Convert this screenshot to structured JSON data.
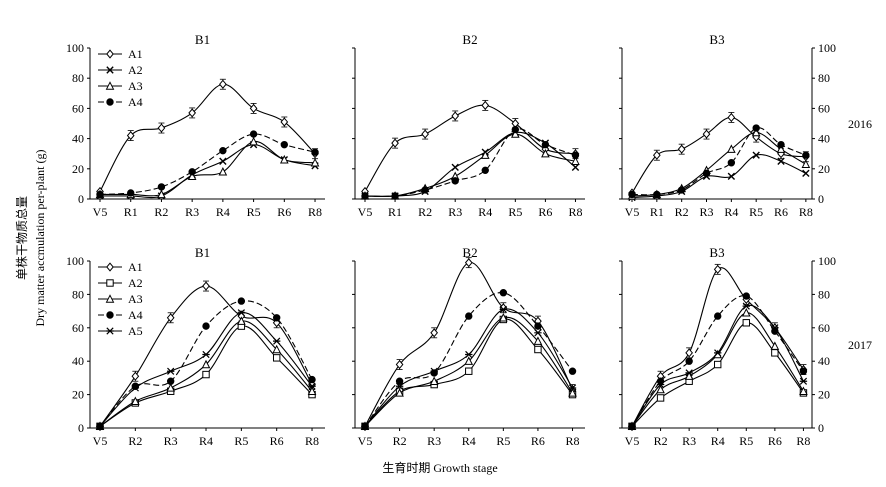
{
  "chart_data": [
    {
      "type": "line",
      "panel": "2016-B1",
      "title": "B1",
      "categories": [
        "V5",
        "R1",
        "R2",
        "R3",
        "R4",
        "R5",
        "R6",
        "R8"
      ],
      "ylim": [
        0,
        100
      ],
      "yticks": [
        0,
        20,
        40,
        60,
        80,
        100
      ],
      "legend": "top-left",
      "series": [
        {
          "name": "A1",
          "values": [
            5,
            42,
            47,
            57,
            76,
            60,
            51,
            30
          ]
        },
        {
          "name": "A2",
          "values": [
            2,
            2,
            2,
            16,
            25,
            36,
            26,
            22
          ]
        },
        {
          "name": "A3",
          "values": [
            3,
            3,
            3,
            15,
            18,
            38,
            26,
            24
          ]
        },
        {
          "name": "A4",
          "values": [
            3,
            4,
            8,
            18,
            32,
            43,
            36,
            31
          ]
        }
      ]
    },
    {
      "type": "line",
      "panel": "2016-B2",
      "title": "B2",
      "categories": [
        "V5",
        "R1",
        "R2",
        "R3",
        "R4",
        "R5",
        "R6",
        "R8"
      ],
      "ylim": [
        0,
        100
      ],
      "series": [
        {
          "name": "A1",
          "values": [
            5,
            37,
            43,
            55,
            62,
            50,
            33,
            30
          ]
        },
        {
          "name": "A2",
          "values": [
            2,
            2,
            5,
            21,
            31,
            44,
            37,
            21
          ]
        },
        {
          "name": "A3",
          "values": [
            2,
            2,
            7,
            15,
            29,
            43,
            30,
            25
          ]
        },
        {
          "name": "A4",
          "values": [
            2,
            2,
            6,
            12,
            19,
            46,
            36,
            29
          ]
        }
      ]
    },
    {
      "type": "line",
      "panel": "2016-B3",
      "title": "B3",
      "categories": [
        "V5",
        "R1",
        "R2",
        "R3",
        "R4",
        "R5",
        "R6",
        "R8"
      ],
      "ylim": [
        0,
        100
      ],
      "yticks_right": [
        0,
        20,
        40,
        60,
        80,
        100
      ],
      "series": [
        {
          "name": "A1",
          "values": [
            4,
            29,
            33,
            43,
            54,
            41,
            30,
            28
          ]
        },
        {
          "name": "A2",
          "values": [
            1,
            2,
            5,
            15,
            15,
            29,
            25,
            17
          ]
        },
        {
          "name": "A3",
          "values": [
            2,
            3,
            7,
            19,
            33,
            44,
            33,
            23
          ]
        },
        {
          "name": "A4",
          "values": [
            3,
            3,
            6,
            17,
            24,
            47,
            36,
            29
          ]
        }
      ]
    },
    {
      "type": "line",
      "panel": "2017-B1",
      "title": "B1",
      "categories": [
        "V5",
        "R2",
        "R3",
        "R4",
        "R5",
        "R6",
        "R8"
      ],
      "ylim": [
        0,
        100
      ],
      "yticks": [
        0,
        20,
        40,
        60,
        80,
        100
      ],
      "legend": "top-left",
      "series": [
        {
          "name": "A1",
          "values": [
            1,
            31,
            66,
            85,
            67,
            63,
            26
          ]
        },
        {
          "name": "A2",
          "values": [
            1,
            15,
            22,
            32,
            61,
            42,
            20
          ]
        },
        {
          "name": "A3",
          "values": [
            1,
            16,
            24,
            38,
            64,
            47,
            22
          ]
        },
        {
          "name": "A4",
          "values": [
            1,
            25,
            28,
            61,
            76,
            66,
            29
          ]
        },
        {
          "name": "A5",
          "values": [
            1,
            24,
            34,
            44,
            69,
            52,
            25
          ]
        }
      ]
    },
    {
      "type": "line",
      "panel": "2017-B2",
      "title": "B2",
      "categories": [
        "V5",
        "R2",
        "R3",
        "R4",
        "R5",
        "R6",
        "R8"
      ],
      "ylim": [
        0,
        100
      ],
      "series": [
        {
          "name": "A1",
          "values": [
            1,
            38,
            57,
            99,
            72,
            64,
            23
          ]
        },
        {
          "name": "A2",
          "values": [
            1,
            22,
            26,
            34,
            65,
            47,
            20
          ]
        },
        {
          "name": "A3",
          "values": [
            1,
            21,
            28,
            40,
            66,
            52,
            21
          ]
        },
        {
          "name": "A4",
          "values": [
            1,
            28,
            33,
            67,
            81,
            61,
            34
          ]
        },
        {
          "name": "A5",
          "values": [
            1,
            25,
            34,
            44,
            71,
            57,
            24
          ]
        }
      ]
    },
    {
      "type": "line",
      "panel": "2017-B3",
      "title": "B3",
      "categories": [
        "V5",
        "R2",
        "R3",
        "R4",
        "R5",
        "R6",
        "R8"
      ],
      "ylim": [
        0,
        100
      ],
      "yticks_right": [
        0,
        20,
        40,
        60,
        80,
        100
      ],
      "series": [
        {
          "name": "A1",
          "values": [
            1,
            31,
            45,
            95,
            77,
            60,
            35
          ]
        },
        {
          "name": "A2",
          "values": [
            1,
            18,
            28,
            38,
            63,
            45,
            21
          ]
        },
        {
          "name": "A3",
          "values": [
            1,
            23,
            31,
            44,
            69,
            49,
            22
          ]
        },
        {
          "name": "A4",
          "values": [
            1,
            28,
            40,
            67,
            79,
            58,
            34
          ]
        },
        {
          "name": "A5",
          "values": [
            1,
            26,
            33,
            45,
            73,
            60,
            28
          ]
        }
      ]
    }
  ],
  "labels": {
    "ylabel_cn": "单株干物质总量",
    "ylabel_en": "Dry matter accmulation per-plant (g)",
    "xlabel": "生育时期  Growth stage",
    "year_top": "2016",
    "year_bottom": "2017"
  }
}
